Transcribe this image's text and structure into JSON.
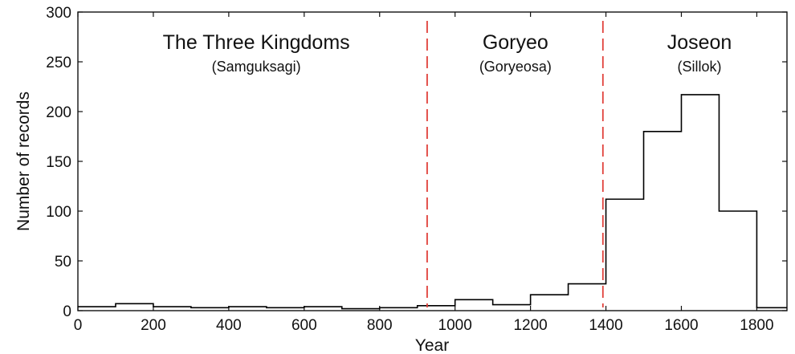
{
  "chart_data": {
    "type": "bar",
    "histogram": true,
    "xlabel": "Year",
    "ylabel": "Number of records",
    "xlim": [
      0,
      1880
    ],
    "ylim": [
      0,
      300
    ],
    "xticks": [
      0,
      200,
      400,
      600,
      800,
      1000,
      1200,
      1400,
      1600,
      1800
    ],
    "yticks": [
      0,
      50,
      100,
      150,
      200,
      250,
      300
    ],
    "bin_edges": [
      0,
      100,
      200,
      300,
      400,
      500,
      600,
      700,
      800,
      900,
      1000,
      1100,
      1200,
      1300,
      1400,
      1500,
      1600,
      1700,
      1800,
      1900
    ],
    "values": [
      4,
      7,
      4,
      3,
      4,
      3,
      4,
      2,
      3,
      5,
      11,
      6,
      16,
      27,
      112,
      180,
      217,
      100,
      3
    ],
    "era_boundaries": [
      926,
      1392
    ],
    "eras": [
      {
        "name": "The Three Kingdoms",
        "source": "(Samguksagi)",
        "center": 473
      },
      {
        "name": "Goryeo",
        "source": "(Goryeosa)",
        "center": 1160
      },
      {
        "name": "Joseon",
        "source": "(Sillok)",
        "center": 1648
      }
    ],
    "colors": {
      "bars": "#000000",
      "boundary": "#e0403a"
    },
    "grid": false
  }
}
